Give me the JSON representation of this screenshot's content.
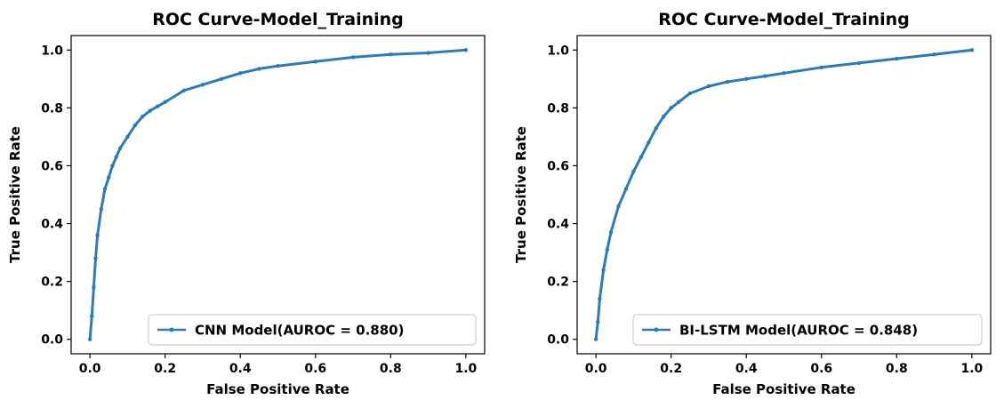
{
  "colors": {
    "series": "#2d7bb6",
    "axis": "#000000",
    "legend_border": "#cfcfcf"
  },
  "chart_data": [
    {
      "type": "line",
      "title": "ROC Curve-Model_Training",
      "xlabel": "False Positive Rate",
      "ylabel": "True Positive Rate",
      "xlim": [
        -0.05,
        1.05
      ],
      "ylim": [
        -0.05,
        1.05
      ],
      "xticks": [
        "0.0",
        "0.2",
        "0.4",
        "0.6",
        "0.8",
        "1.0"
      ],
      "yticks": [
        "0.0",
        "0.2",
        "0.4",
        "0.6",
        "0.8",
        "1.0"
      ],
      "legend_position": "lower-right",
      "grid": false,
      "series": [
        {
          "name": "CNN Model(AUROC =  0.880)",
          "x": [
            0.0,
            0.005,
            0.01,
            0.015,
            0.02,
            0.03,
            0.04,
            0.05,
            0.06,
            0.07,
            0.08,
            0.1,
            0.12,
            0.14,
            0.16,
            0.18,
            0.2,
            0.25,
            0.3,
            0.35,
            0.4,
            0.45,
            0.5,
            0.6,
            0.7,
            0.8,
            0.9,
            1.0
          ],
          "y": [
            0.0,
            0.08,
            0.18,
            0.28,
            0.36,
            0.45,
            0.52,
            0.56,
            0.6,
            0.63,
            0.66,
            0.7,
            0.74,
            0.77,
            0.79,
            0.805,
            0.82,
            0.86,
            0.88,
            0.9,
            0.92,
            0.935,
            0.945,
            0.96,
            0.975,
            0.985,
            0.99,
            1.0
          ]
        }
      ]
    },
    {
      "type": "line",
      "title": "ROC Curve-Model_Training",
      "xlabel": "False Positive Rate",
      "ylabel": "True Positive Rate",
      "xlim": [
        -0.05,
        1.05
      ],
      "ylim": [
        -0.05,
        1.05
      ],
      "xticks": [
        "0.0",
        "0.2",
        "0.4",
        "0.6",
        "0.8",
        "1.0"
      ],
      "yticks": [
        "0.0",
        "0.2",
        "0.4",
        "0.6",
        "0.8",
        "1.0"
      ],
      "legend_position": "lower-right",
      "grid": false,
      "series": [
        {
          "name": "BI-LSTM Model(AUROC =  0.848)",
          "x": [
            0.0,
            0.005,
            0.01,
            0.02,
            0.03,
            0.04,
            0.06,
            0.08,
            0.1,
            0.12,
            0.14,
            0.16,
            0.18,
            0.2,
            0.22,
            0.25,
            0.3,
            0.35,
            0.4,
            0.45,
            0.5,
            0.6,
            0.7,
            0.8,
            0.9,
            1.0
          ],
          "y": [
            0.0,
            0.06,
            0.14,
            0.24,
            0.31,
            0.37,
            0.46,
            0.52,
            0.58,
            0.63,
            0.68,
            0.73,
            0.77,
            0.8,
            0.82,
            0.85,
            0.875,
            0.89,
            0.9,
            0.91,
            0.92,
            0.94,
            0.955,
            0.97,
            0.985,
            1.0
          ]
        }
      ]
    }
  ]
}
